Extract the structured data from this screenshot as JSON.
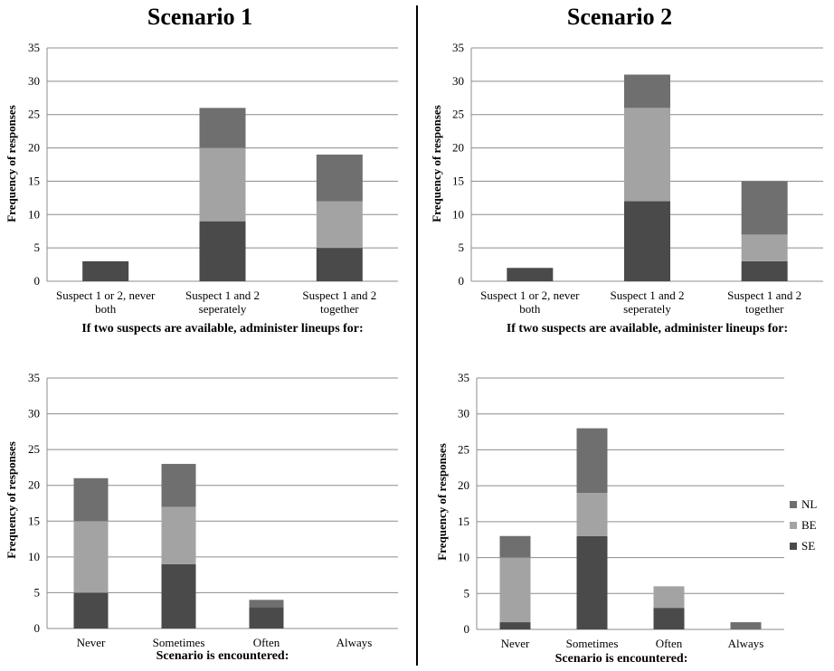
{
  "titles": {
    "scenario1": "Scenario 1",
    "scenario2": "Scenario 2"
  },
  "colors": {
    "SE": "#4a4a4a",
    "BE": "#a3a3a3",
    "NL": "#6f6f6f",
    "grid": "#8c8c8c",
    "axis": "#8c8c8c"
  },
  "legend": [
    {
      "key": "NL",
      "label": "NL"
    },
    {
      "key": "BE",
      "label": "BE"
    },
    {
      "key": "SE",
      "label": "SE"
    }
  ],
  "chart_data": [
    {
      "type": "bar",
      "stacked": true,
      "scenario": "Scenario 1",
      "categories": [
        [
          "Suspect 1 or 2, never",
          "both"
        ],
        [
          "Suspect 1 and 2",
          "seperately"
        ],
        [
          "Suspect 1 and 2",
          "together"
        ]
      ],
      "series": [
        {
          "name": "SE",
          "values": [
            3,
            9,
            5
          ]
        },
        {
          "name": "BE",
          "values": [
            0,
            11,
            7
          ]
        },
        {
          "name": "NL",
          "values": [
            0,
            6,
            7
          ]
        }
      ],
      "ylabel": "Frequency  of  responses",
      "xlabel": "If two suspects are available, administer lineups for:",
      "ylim": [
        0,
        35
      ],
      "yticks": [
        0,
        5,
        10,
        15,
        20,
        25,
        30,
        35
      ],
      "grid": true
    },
    {
      "type": "bar",
      "stacked": true,
      "scenario": "Scenario 2",
      "categories": [
        [
          "Suspect 1 or 2, never",
          "both"
        ],
        [
          "Suspect 1 and 2",
          "seperately"
        ],
        [
          "Suspect 1 and 2",
          "together"
        ]
      ],
      "series": [
        {
          "name": "SE",
          "values": [
            2,
            12,
            3
          ]
        },
        {
          "name": "BE",
          "values": [
            0,
            14,
            4
          ]
        },
        {
          "name": "NL",
          "values": [
            0,
            5,
            8
          ]
        }
      ],
      "ylabel": "Frequency  of  responses",
      "xlabel": "If two suspects are available, administer lineups for:",
      "ylim": [
        0,
        35
      ],
      "yticks": [
        0,
        5,
        10,
        15,
        20,
        25,
        30,
        35
      ],
      "grid": true
    },
    {
      "type": "bar",
      "stacked": true,
      "scenario": "Scenario 1",
      "categories": [
        [
          "Never"
        ],
        [
          "Sometimes"
        ],
        [
          "Often"
        ],
        [
          "Always"
        ]
      ],
      "series": [
        {
          "name": "SE",
          "values": [
            5,
            9,
            3,
            0
          ]
        },
        {
          "name": "BE",
          "values": [
            10,
            8,
            0,
            0
          ]
        },
        {
          "name": "NL",
          "values": [
            6,
            6,
            1,
            0
          ]
        }
      ],
      "ylabel": "Frequency  of  responses",
      "xlabel": "Scenario is encountered:",
      "ylim": [
        0,
        35
      ],
      "yticks": [
        0,
        5,
        10,
        15,
        20,
        25,
        30,
        35
      ],
      "grid": true
    },
    {
      "type": "bar",
      "stacked": true,
      "scenario": "Scenario 2",
      "categories": [
        [
          "Never"
        ],
        [
          "Sometimes"
        ],
        [
          "Often"
        ],
        [
          "Always"
        ]
      ],
      "series": [
        {
          "name": "SE",
          "values": [
            1,
            13,
            3,
            0
          ]
        },
        {
          "name": "BE",
          "values": [
            9,
            6,
            3,
            0
          ]
        },
        {
          "name": "NL",
          "values": [
            3,
            9,
            0,
            1
          ]
        }
      ],
      "ylabel": "Frequency  of  responses",
      "xlabel": "Scenario is encountered:",
      "ylim": [
        0,
        35
      ],
      "yticks": [
        0,
        5,
        10,
        15,
        20,
        25,
        30,
        35
      ],
      "grid": true
    }
  ]
}
